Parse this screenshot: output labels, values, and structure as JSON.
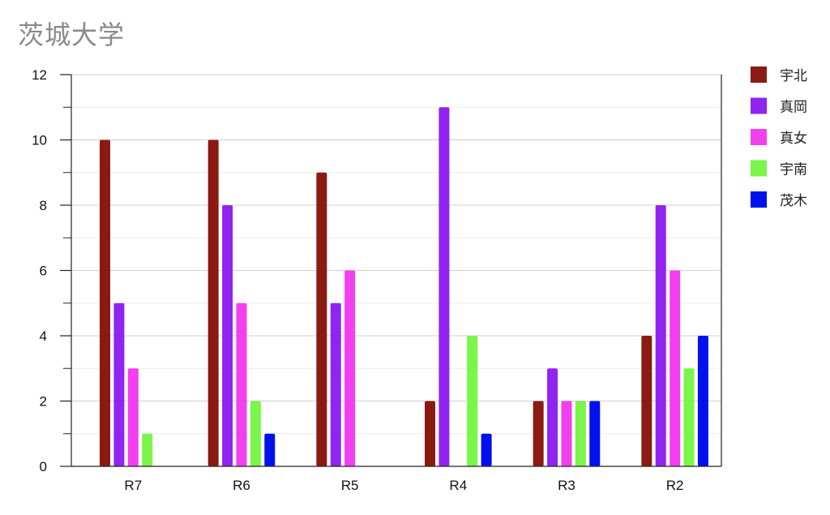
{
  "chart_data": {
    "type": "bar",
    "title": "茨城大学",
    "xlabel": "",
    "ylabel": "",
    "categories": [
      "R7",
      "R6",
      "R5",
      "R4",
      "R3",
      "R2"
    ],
    "ylim": [
      0,
      12
    ],
    "yticks": [
      0,
      2,
      4,
      6,
      8,
      10,
      12
    ],
    "grid": true,
    "legend_position": "right",
    "series": [
      {
        "name": "宇北",
        "color": "#8b1a12",
        "values": [
          10,
          10,
          9,
          2,
          2,
          4
        ]
      },
      {
        "name": "真岡",
        "color": "#9124f0",
        "values": [
          5,
          8,
          5,
          11,
          3,
          8
        ]
      },
      {
        "name": "真女",
        "color": "#f23ff0",
        "values": [
          3,
          5,
          6,
          0,
          2,
          6
        ]
      },
      {
        "name": "宇南",
        "color": "#7af54a",
        "values": [
          1,
          2,
          0,
          4,
          2,
          3
        ]
      },
      {
        "name": "茂木",
        "color": "#0011ee",
        "values": [
          0,
          1,
          0,
          1,
          2,
          4
        ]
      }
    ]
  }
}
